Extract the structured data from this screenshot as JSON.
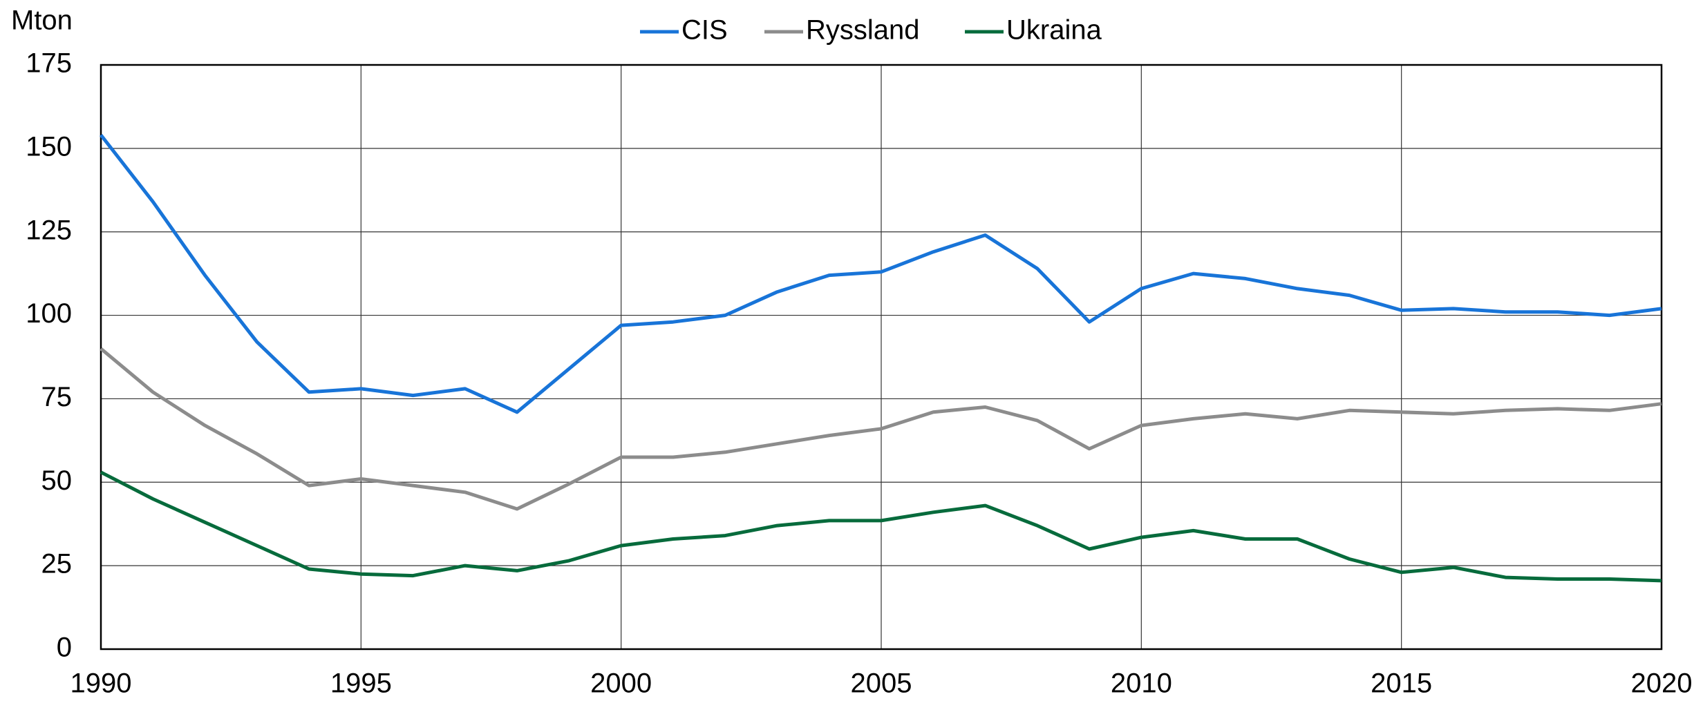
{
  "chart_data": {
    "type": "line",
    "y_axis_label": "Mton",
    "x": [
      1990,
      1991,
      1992,
      1993,
      1994,
      1995,
      1996,
      1997,
      1998,
      1999,
      2000,
      2001,
      2002,
      2003,
      2004,
      2005,
      2006,
      2007,
      2008,
      2009,
      2010,
      2011,
      2012,
      2013,
      2014,
      2015,
      2016,
      2017,
      2018,
      2019,
      2020
    ],
    "series": [
      {
        "name": "CIS",
        "color": "#1874d8",
        "values": [
          154,
          134,
          112,
          92,
          77,
          78,
          76,
          78,
          71,
          84,
          97,
          98,
          100,
          107,
          112,
          113,
          119,
          124,
          114,
          98,
          108,
          112.5,
          111,
          108,
          106,
          101.5,
          102,
          101,
          101,
          100,
          102
        ]
      },
      {
        "name": "Ryssland",
        "color": "#8c8c8c",
        "values": [
          90,
          77,
          67,
          58.5,
          49,
          51,
          49,
          47,
          42,
          49.5,
          57.5,
          57.5,
          59,
          61.5,
          64,
          66,
          71,
          72.5,
          68.5,
          60,
          67,
          69,
          70.5,
          69,
          71.5,
          71,
          70.5,
          71.5,
          72,
          71.5,
          73.5
        ]
      },
      {
        "name": "Ukraina",
        "color": "#076b3c",
        "values": [
          53,
          45,
          38,
          31,
          24,
          22.5,
          22,
          25,
          23.5,
          26.5,
          31,
          33,
          34,
          37,
          38.5,
          38.5,
          41,
          43,
          37,
          30,
          33.5,
          35.5,
          33,
          33,
          27,
          23,
          24.5,
          21.5,
          21,
          21,
          20.5
        ]
      }
    ],
    "xlim": [
      1990,
      2020
    ],
    "xticks": [
      1990,
      1995,
      2000,
      2005,
      2010,
      2015,
      2020
    ],
    "ylim": [
      0,
      175
    ],
    "yticks": [
      0,
      25,
      50,
      75,
      100,
      125,
      150,
      175
    ],
    "grid": true,
    "legend": "top"
  }
}
